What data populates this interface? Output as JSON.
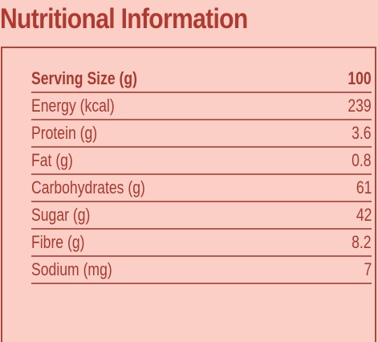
{
  "title": "Nutritional Information",
  "header": {
    "label": "Serving Size (g)",
    "value": "100"
  },
  "rows": [
    {
      "label": "Energy (kcal)",
      "value": "239"
    },
    {
      "label": "Protein (g)",
      "value": "3.6"
    },
    {
      "label": "Fat (g)",
      "value": "0.8"
    },
    {
      "label": "Carbohydrates (g)",
      "value": "61"
    },
    {
      "label": "Sugar (g)",
      "value": "42"
    },
    {
      "label": "Fibre (g)",
      "value": "8.2"
    },
    {
      "label": "Sodium (mg)",
      "value": "7"
    }
  ],
  "colors": {
    "background": "#fbcfc6",
    "text": "#a8392f",
    "title": "#b03a30",
    "rule": "#b65a4f"
  }
}
